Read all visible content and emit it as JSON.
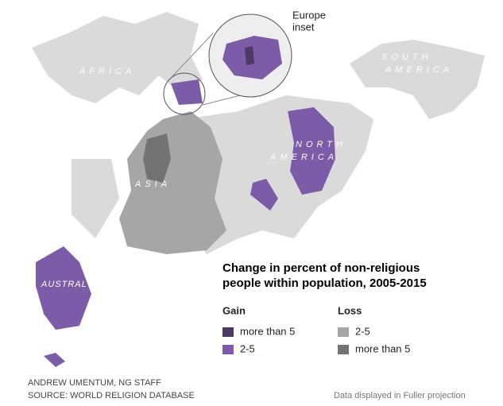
{
  "map": {
    "labels": {
      "africa": "AFRICA",
      "south": "SOUTH",
      "america_south": "AMERICA",
      "asia": "ASIA",
      "north": "NORTH",
      "america_north": "AMERICA",
      "australia": "AUSTRAL"
    },
    "inset": [
      "Europe",
      "inset"
    ]
  },
  "legend": {
    "title": [
      "Change in percent of non-religious",
      "people within population, 2005-2015"
    ],
    "groups": [
      {
        "name": "Gain",
        "items": [
          {
            "label": "more than 5",
            "color": "#4b3a63"
          },
          {
            "label": "2-5",
            "color": "#7c5ca8"
          }
        ]
      },
      {
        "name": "Loss",
        "items": [
          {
            "label": "2-5",
            "color": "#a6a6a6"
          },
          {
            "label": "more than 5",
            "color": "#737373"
          }
        ]
      }
    ]
  },
  "credits": [
    "ANDREW UMENTUM, NG STAFF",
    "SOURCE: WORLD RELIGION DATABASE"
  ],
  "note": "Data displayed in Fuller projection"
}
